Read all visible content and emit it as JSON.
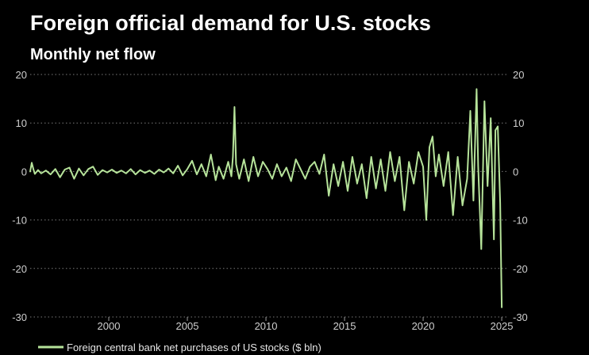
{
  "header": {
    "title": "Foreign official demand for U.S. stocks",
    "subtitle": "Monthly net flow"
  },
  "chart_data": {
    "type": "line",
    "title": "Foreign official demand for U.S. stocks",
    "subtitle": "Monthly net flow",
    "xlabel": "",
    "ylabel": "",
    "grid": "horizontal dotted",
    "legend_placement": "bottom-left",
    "line_color": "#b6e39a",
    "xlim": [
      1995,
      2025.3
    ],
    "ylim": [
      -30,
      20
    ],
    "y_ticks": [
      "20",
      "10",
      "0",
      "-10",
      "-20",
      "-30"
    ],
    "x_ticks": [
      {
        "label": "2000",
        "value": 2000
      },
      {
        "label": "2005",
        "value": 2005
      },
      {
        "label": "2010",
        "value": 2010
      },
      {
        "label": "2015",
        "value": 2015
      },
      {
        "label": "2020",
        "value": 2020
      },
      {
        "label": "2025",
        "value": 2025
      }
    ],
    "series": [
      {
        "name": "Foreign central bank net purchases of US stocks ($ bln)",
        "x": [
          1995.0,
          1995.1,
          1995.2,
          1995.3,
          1995.5,
          1995.7,
          1996.0,
          1996.3,
          1996.6,
          1996.9,
          1997.2,
          1997.5,
          1997.8,
          1998.1,
          1998.4,
          1998.7,
          1999.0,
          1999.3,
          1999.6,
          1999.9,
          2000.2,
          2000.5,
          2000.8,
          2001.1,
          2001.4,
          2001.7,
          2002.0,
          2002.3,
          2002.6,
          2002.9,
          2003.2,
          2003.5,
          2003.8,
          2004.1,
          2004.4,
          2004.7,
          2005.0,
          2005.3,
          2005.6,
          2005.9,
          2006.2,
          2006.5,
          2006.8,
          2007.0,
          2007.3,
          2007.6,
          2007.8,
          2007.9,
          2008.0,
          2008.1,
          2008.3,
          2008.6,
          2008.9,
          2009.2,
          2009.5,
          2009.8,
          2010.1,
          2010.4,
          2010.7,
          2011.0,
          2011.3,
          2011.6,
          2011.9,
          2012.2,
          2012.5,
          2012.8,
          2013.1,
          2013.4,
          2013.7,
          2014.0,
          2014.3,
          2014.6,
          2014.9,
          2015.2,
          2015.5,
          2015.8,
          2016.1,
          2016.4,
          2016.7,
          2017.0,
          2017.3,
          2017.6,
          2017.9,
          2018.2,
          2018.5,
          2018.8,
          2019.1,
          2019.4,
          2019.7,
          2020.0,
          2020.2,
          2020.4,
          2020.6,
          2020.8,
          2021.0,
          2021.3,
          2021.6,
          2021.9,
          2022.2,
          2022.5,
          2022.8,
          2023.0,
          2023.2,
          2023.4,
          2023.5,
          2023.7,
          2023.9,
          2024.1,
          2024.3,
          2024.5,
          2024.6,
          2024.75,
          2024.9,
          2025.0
        ],
        "values": [
          0,
          1.8,
          0.5,
          -0.5,
          0.3,
          -0.4,
          0.2,
          -0.6,
          0.5,
          -1.2,
          0.4,
          0.8,
          -1.5,
          0.6,
          -0.8,
          0.5,
          1.0,
          -0.7,
          0.3,
          -0.2,
          0.4,
          -0.3,
          0.2,
          -0.4,
          0.5,
          -0.6,
          0.3,
          -0.3,
          0.2,
          -0.5,
          0.4,
          -0.2,
          0.6,
          -0.4,
          1.2,
          -0.8,
          0.5,
          2.2,
          -0.6,
          1.5,
          -1.0,
          3.5,
          -1.8,
          1.0,
          -1.5,
          2.0,
          -1.0,
          3.0,
          13.3,
          1.5,
          -1.5,
          2.5,
          -2.0,
          3.0,
          -1.0,
          2.0,
          0.5,
          -1.5,
          1.5,
          -1.0,
          0.8,
          -2.0,
          2.5,
          0.5,
          -1.5,
          1.0,
          2.0,
          -0.5,
          3.5,
          -5.0,
          1.5,
          -3.0,
          2.0,
          -4.0,
          3.0,
          -2.5,
          1.5,
          -5.5,
          3.0,
          -3.5,
          2.5,
          -4.0,
          4.0,
          -2.0,
          3.0,
          -8.0,
          2.0,
          -2.5,
          4.0,
          1.0,
          -10.0,
          5.0,
          7.2,
          -1.0,
          3.5,
          -3.0,
          4.0,
          -9.0,
          3.0,
          -7.0,
          -1.5,
          12.5,
          -6.0,
          17.0,
          1.0,
          -16.0,
          14.5,
          -3.0,
          11.0,
          -14.0,
          8.5,
          9.3,
          -6.5,
          -28.0
        ]
      }
    ]
  },
  "legend": {
    "label": "Foreign central bank net purchases of US stocks ($ bln)"
  }
}
